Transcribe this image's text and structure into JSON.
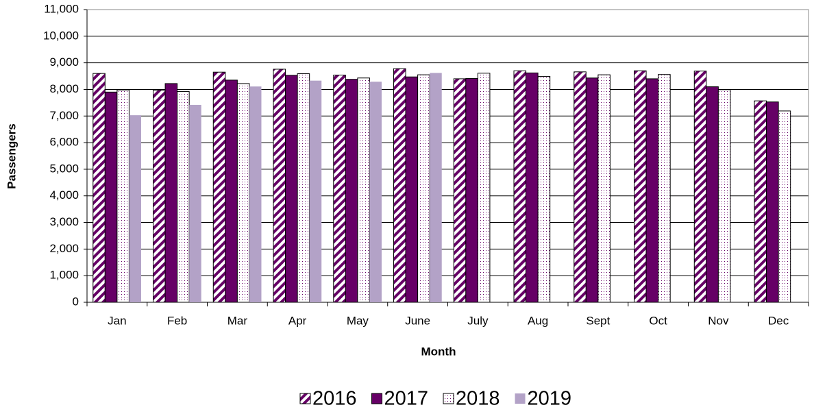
{
  "chart_data": {
    "type": "bar",
    "xlabel": "Month",
    "ylabel": "Passengers",
    "categories": [
      "Jan",
      "Feb",
      "Mar",
      "Apr",
      "May",
      "June",
      "July",
      "Aug",
      "Sept",
      "Oct",
      "Nov",
      "Dec"
    ],
    "series": [
      {
        "name": "2016",
        "color": "#660066",
        "pattern": "stripes",
        "values": [
          8600,
          7970,
          8650,
          8760,
          8540,
          8780,
          8400,
          8700,
          8660,
          8700,
          8690,
          7570
        ]
      },
      {
        "name": "2017",
        "color": "#660066",
        "pattern": "solid",
        "values": [
          7900,
          8220,
          8350,
          8530,
          8380,
          8470,
          8410,
          8620,
          8430,
          8400,
          8100,
          7530
        ]
      },
      {
        "name": "2018",
        "color": "#660066",
        "pattern": "dots",
        "values": [
          7980,
          7920,
          8220,
          8590,
          8430,
          8550,
          8610,
          8490,
          8550,
          8560,
          7990,
          7190
        ]
      },
      {
        "name": "2019",
        "color": "#b3a2c7",
        "pattern": "solid",
        "values": [
          7030,
          7420,
          8110,
          8330,
          8290,
          8620,
          null,
          null,
          null,
          null,
          null,
          null
        ]
      }
    ],
    "ylim": [
      0,
      11000
    ],
    "yticks": [
      0,
      {
        "value": 1000,
        "label": "1,000"
      },
      {
        "value": 2000,
        "label": "2,000"
      },
      {
        "value": 3000,
        "label": "3,000"
      },
      {
        "value": 4000,
        "label": "4,000"
      },
      {
        "value": 5000,
        "label": "5,000"
      },
      {
        "value": 6000,
        "label": "6,000"
      },
      {
        "value": 7000,
        "label": "7,000"
      },
      {
        "value": 8000,
        "label": "8,000"
      },
      {
        "value": 9000,
        "label": "9,000"
      },
      {
        "value": 10000,
        "label": "10,000"
      },
      {
        "value": 11000,
        "label": "11,000"
      }
    ],
    "grid": true,
    "legend": "bottom"
  }
}
